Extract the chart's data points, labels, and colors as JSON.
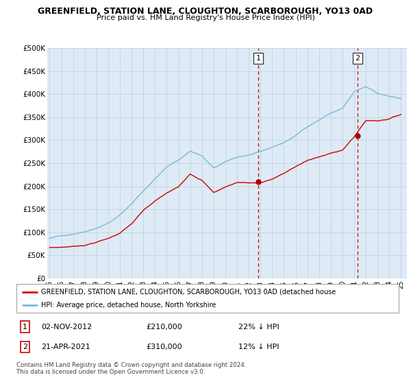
{
  "title": "GREENFIELD, STATION LANE, CLOUGHTON, SCARBOROUGH, YO13 0AD",
  "subtitle": "Price paid vs. HM Land Registry's House Price Index (HPI)",
  "legend_line1": "GREENFIELD, STATION LANE, CLOUGHTON, SCARBOROUGH, YO13 0AD (detached house",
  "legend_line2": "HPI: Average price, detached house, North Yorkshire",
  "footer": "Contains HM Land Registry data © Crown copyright and database right 2024.\nThis data is licensed under the Open Government Licence v3.0.",
  "annotation1_date": "02-NOV-2012",
  "annotation1_price": "£210,000",
  "annotation1_hpi": "22% ↓ HPI",
  "annotation2_date": "21-APR-2021",
  "annotation2_price": "£310,000",
  "annotation2_hpi": "12% ↓ HPI",
  "hpi_color": "#7ab8d9",
  "price_color": "#cc0000",
  "marker_color": "#aa0000",
  "annotation_line_color": "#cc0000",
  "background_color": "#ffffff",
  "plot_bg_color": "#deeaf5",
  "grid_color": "#b8cfe8",
  "ylim": [
    0,
    500000
  ],
  "yticks": [
    0,
    50000,
    100000,
    150000,
    200000,
    250000,
    300000,
    350000,
    400000,
    450000,
    500000
  ],
  "ytick_labels": [
    "£0",
    "£50K",
    "£100K",
    "£150K",
    "£200K",
    "£250K",
    "£300K",
    "£350K",
    "£400K",
    "£450K",
    "£500K"
  ],
  "sale1_x": 2012.83,
  "sale1_y": 210000,
  "sale2_x": 2021.3,
  "sale2_y": 310000,
  "vline1_x": 2012.83,
  "vline2_x": 2021.3,
  "xmin": 1994.8,
  "xmax": 2025.5
}
